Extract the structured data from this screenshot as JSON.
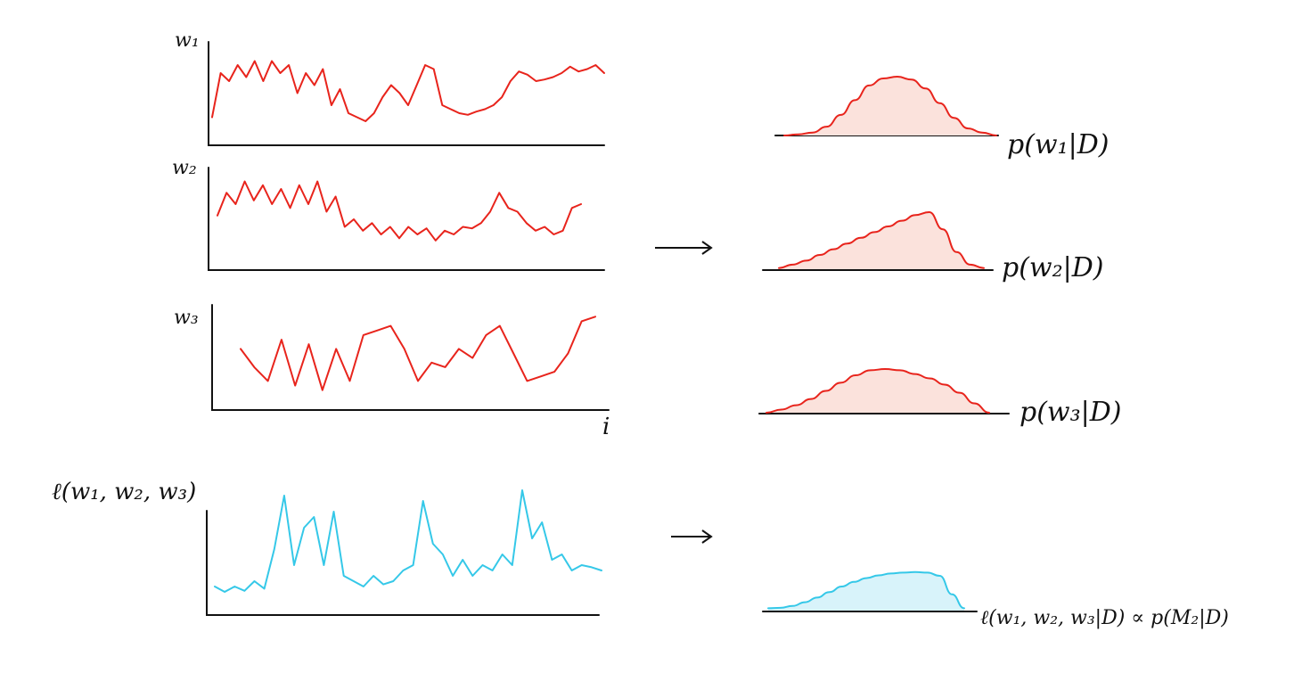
{
  "colors": {
    "trace": "#e8241c",
    "trace_fill": "#fbe2dc",
    "likelihood": "#35c8e8",
    "likelihood_fill": "#d8f3fa",
    "ink": "#111111"
  },
  "traces": [
    {
      "label": "w₁",
      "values": [
        0.15,
        0.7,
        0.6,
        0.8,
        0.65,
        0.85,
        0.6,
        0.85,
        0.7,
        0.8,
        0.45,
        0.7,
        0.55,
        0.75,
        0.3,
        0.5,
        0.2,
        0.15,
        0.1,
        0.2,
        0.4,
        0.55,
        0.45,
        0.3,
        0.55,
        0.8,
        0.75,
        0.3,
        0.25,
        0.2,
        0.18,
        0.22,
        0.25,
        0.3,
        0.4,
        0.6,
        0.72,
        0.68,
        0.6,
        0.62,
        0.65,
        0.7,
        0.78,
        0.72,
        0.75,
        0.8,
        0.7
      ]
    },
    {
      "label": "w₂",
      "values": [
        0.45,
        0.75,
        0.6,
        0.9,
        0.65,
        0.85,
        0.6,
        0.8,
        0.55,
        0.85,
        0.6,
        0.9,
        0.5,
        0.7,
        0.3,
        0.4,
        0.25,
        0.35,
        0.2,
        0.3,
        0.15,
        0.3,
        0.2,
        0.28,
        0.12,
        0.25,
        0.2,
        0.3,
        0.28,
        0.35,
        0.5,
        0.75,
        0.55,
        0.5,
        0.35,
        0.25,
        0.3,
        0.2,
        0.25,
        0.55,
        0.6
      ]
    },
    {
      "label": "w₃",
      "values": [
        0.55,
        0.35,
        0.2,
        0.65,
        0.15,
        0.6,
        0.1,
        0.55,
        0.2,
        0.7,
        0.75,
        0.8,
        0.55,
        0.2,
        0.4,
        0.35,
        0.55,
        0.45,
        0.7,
        0.8,
        0.5,
        0.2,
        0.25,
        0.3,
        0.5,
        0.85,
        0.9
      ]
    }
  ],
  "x_label": "i",
  "posteriors": [
    {
      "label": "p(w₁|D)",
      "values": [
        0,
        0.02,
        0.05,
        0.15,
        0.35,
        0.6,
        0.85,
        0.97,
        1,
        0.95,
        0.8,
        0.55,
        0.3,
        0.12,
        0.05,
        0
      ]
    },
    {
      "label": "p(w₂|D)",
      "values": [
        0.02,
        0.08,
        0.15,
        0.25,
        0.35,
        0.45,
        0.55,
        0.65,
        0.75,
        0.85,
        0.95,
        1,
        0.7,
        0.3,
        0.08,
        0.02
      ]
    },
    {
      "label": "p(w₃|D)",
      "values": [
        0,
        0.05,
        0.12,
        0.22,
        0.35,
        0.48,
        0.6,
        0.68,
        0.7,
        0.68,
        0.62,
        0.55,
        0.45,
        0.32,
        0.15,
        0
      ]
    }
  ],
  "likelihood_trace": {
    "label": "ℓ(w₁, w₂, w₃)",
    "values": [
      0.1,
      0.05,
      0.1,
      0.06,
      0.15,
      0.08,
      0.45,
      0.95,
      0.3,
      0.65,
      0.75,
      0.3,
      0.8,
      0.2,
      0.15,
      0.1,
      0.2,
      0.12,
      0.15,
      0.25,
      0.3,
      0.9,
      0.5,
      0.4,
      0.2,
      0.35,
      0.2,
      0.3,
      0.25,
      0.4,
      0.3,
      1.0,
      0.55,
      0.7,
      0.35,
      0.4,
      0.25,
      0.3,
      0.28,
      0.25
    ]
  },
  "likelihood_posterior": {
    "label": "ℓ(w₁, w₂, w₃|D) ∝ p(M₂|D)",
    "values": [
      0.05,
      0.06,
      0.1,
      0.18,
      0.28,
      0.4,
      0.52,
      0.62,
      0.7,
      0.76,
      0.8,
      0.82,
      0.83,
      0.82,
      0.75,
      0.35,
      0.05
    ]
  }
}
